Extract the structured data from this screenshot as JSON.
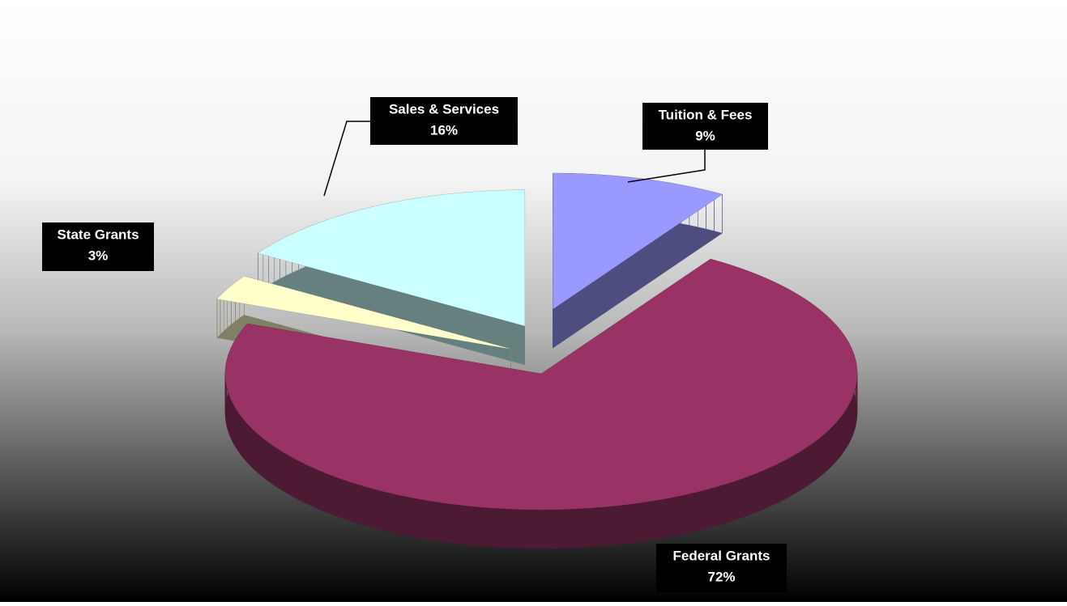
{
  "chart_data": {
    "type": "pie",
    "categories": [
      "Tuition & Fees",
      "Federal Grants",
      "State Grants",
      "Sales & Services"
    ],
    "values": [
      9,
      72,
      3,
      16
    ],
    "value_labels": [
      "9%",
      "72%",
      "3%",
      "16%"
    ],
    "colors": [
      "#9999ff",
      "#993366",
      "#ffffcc",
      "#ccffff"
    ]
  }
}
